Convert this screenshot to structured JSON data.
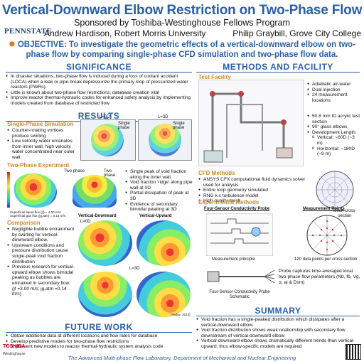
{
  "header": {
    "title": "Vertical-Downward Elbow Restriction on Two-Phase Flow",
    "subtitle": "Sponsored by Toshiba-Westinghouse Fellows Program",
    "logo": "PENNSTATE",
    "author_left": "Andrew Hardison, Robert Morris University",
    "author_right": "Philip Graybill, Grove City College",
    "objective_label": "OBJECTIVE:",
    "objective_text": "To investigate the geometric effects of a vertical-downward elbow on two-phase flow by comparing single-phase CFD simulation and two-phase flow data."
  },
  "significance": {
    "heading": "SIGNIFICANCE",
    "bullets": [
      "In disaster situations, two-phase flow is induced during a loss of coolant accident (LOCA) when a leak or pipe break depressurize the primary loop of pressurized water reactors (PWRs).",
      "Little is known about two-phase flow restrictions; database creation vital",
      "Improve reactor thermal-hydraulic codes for enhanced safety analysis by implementing models created from database of restricted flow"
    ]
  },
  "results": {
    "heading": "RESULTS",
    "single_phase_title": "Single-Phase Simulation",
    "single_phase_bullets": [
      "Counter-rotating vortices produce swirling",
      "Low velocity water emanates from inner wall; high velocity water concentrated near outer wall."
    ],
    "ld0": "L=0D",
    "ld3": "L=3D",
    "two_phase_title": "Two-Phase Experiment",
    "two_phase_bullets": [
      "Single peak of void fraction along the inner wall.",
      "Void fraction 'ridge' along pipe wall at 0D",
      "Partial dissipation of peak at 3D",
      "Evidence of secondary bimodal peaking at 3D"
    ],
    "exp_note1": "Superficial liquid flux (jf) = 4.00 m/s",
    "exp_note2": "Superficial gas flux (jg,atm) = 0.14 m/s",
    "comparison_title": "Comparison",
    "comparison_bullets": [
      "Negligible bubble entrainment by swirling for vertical-downward elbow.",
      "Upstream conditions and pressure distribution cause single-peak void fraction distribution",
      "Previous research for vertical-upward elbow shows bimodal peaking as bubbles are entrained in secondary flow. (jf =3.00 m/s; jg,atm =0.14 m/s)"
    ],
    "label_down": "Vertical-Downward",
    "label_up": "Vertical-Upward",
    "label_l0": "L=0D",
    "label_l3": "L=3D",
    "plot_tag1": "Single phase",
    "plot_tag2": "Single phase",
    "plot_tag3": "Two phase",
    "plot_tag4": "Two phase",
    "cite": "(Yadav, 2013)"
  },
  "future": {
    "heading": "FUTURE WORK",
    "bullets": [
      "Obtain additional data at different locations and flow rates for database",
      "Develop predictive models for two-phase flow restrictions",
      "Implement new models to reactor thermal-hydraulic system analysis code"
    ]
  },
  "methods": {
    "heading": "METHODS AND FACILITY",
    "test_facility": "Test Facility",
    "facility_bullets": [
      "Adiabatic air-water",
      "Dual injection",
      "24 measurement locations"
    ],
    "pipe_bullets": [
      "50.8 mm ID acrylic test section",
      "90° glass elbows",
      "Development Length:"
    ],
    "pipe_sub": [
      "Vertical: ~60D (~3 m)",
      "Horizontal: ~180D (~9 m)"
    ],
    "cfd_title": "CFD Methods",
    "cfd_bullets": [
      "ANSYS CFX computational fluid dynamics solver used for analysis",
      "Entire loop geometry simulated",
      "RNG k-ε turbulence model",
      "High quality mesh"
    ],
    "mesh_caption": "Mesh cross-section",
    "exp_title": "Experimental Methods",
    "probe_title": "Four-Sensor Conductivity Probe",
    "points_title": "Measurement Points",
    "measurement_principle": "Measurement principle",
    "points_caption": "120 data points per cross-section",
    "probe_schematic": "Four-Sensor Conductivity Probe Schematic",
    "probe_note": "Probe captures time-averaged local two-phase flow parameters (Nb, fb, Vg, α, ai & Dsm)"
  },
  "summary": {
    "heading": "SUMMARY",
    "bullets": [
      "Void fraction has a single-peaked distribution which dissipates after a vertical-downward elbow.",
      "Void fraction distribution shows weak relationship with secondary flow downstream of vertical-downward elbow",
      "Vertical-downward elbow shows dramatically different trends than vertical-upward; thus elbow-specific models are required"
    ]
  },
  "footer": {
    "text": "The Advanced Multi-phase Flow Laboratory, Department of Mechanical and Nuclear Engineering",
    "toshiba": "TOSHIBA",
    "westinghouse": "Westinghouse"
  },
  "colors": {
    "accent": "#2a5fa8",
    "subhead": "#d08a2a",
    "objective_star": "#e07a1c"
  }
}
